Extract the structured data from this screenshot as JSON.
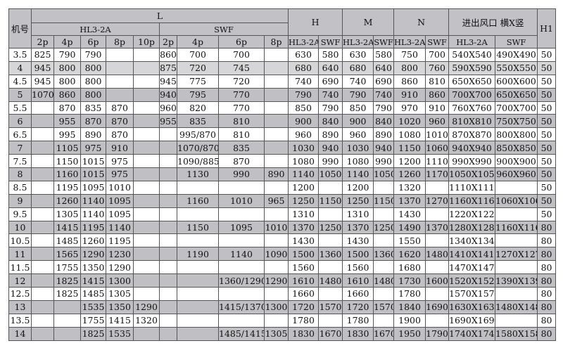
{
  "header": {
    "model": "机号",
    "L": "L",
    "H": "H",
    "M": "M",
    "N": "N",
    "outlet": "进出风口 横X竖",
    "H1": "H1",
    "HL": "HL3-2A",
    "SWF": "SWF",
    "poles_hl": [
      "2p",
      "4p",
      "6p",
      "8p",
      "10p"
    ],
    "poles_swf": [
      "2p",
      "4p",
      "6p",
      "8p"
    ]
  },
  "rows": [
    [
      "3.5",
      "825",
      "790",
      "790",
      "",
      "",
      "860",
      "700",
      "700",
      "",
      "630",
      "580",
      "630",
      "580",
      "750",
      "700",
      "540X540",
      "490X490",
      "50"
    ],
    [
      "4",
      "945",
      "800",
      "800",
      "",
      "",
      "875",
      "720",
      "745",
      "",
      "680",
      "640",
      "680",
      "640",
      "800",
      "760",
      "590X590",
      "550X550",
      "50"
    ],
    [
      "4.5",
      "945",
      "800",
      "800",
      "",
      "",
      "945",
      "775",
      "720",
      "",
      "740",
      "690",
      "740",
      "690",
      "860",
      "810",
      "650X650",
      "600X600",
      "50"
    ],
    [
      "5",
      "1070",
      "860",
      "800",
      "",
      "",
      "940",
      "795",
      "770",
      "",
      "790",
      "740",
      "790",
      "740",
      "910",
      "860",
      "700X700",
      "650X650",
      "50"
    ],
    [
      "5.5",
      "",
      "870",
      "835",
      "870",
      "",
      "960",
      "820",
      "770",
      "",
      "850",
      "790",
      "850",
      "790",
      "970",
      "910",
      "760X760",
      "700X700",
      "50"
    ],
    [
      "6",
      "",
      "955",
      "870",
      "870",
      "",
      "955",
      "835",
      "810",
      "",
      "900",
      "840",
      "900",
      "840",
      "1020",
      "960",
      "810X810",
      "750X750",
      "50"
    ],
    [
      "6.5",
      "",
      "995",
      "890",
      "870",
      "",
      "",
      "995/870",
      "810",
      "",
      "960",
      "890",
      "960",
      "890",
      "1080",
      "1010",
      "870X870",
      "800X800",
      "50"
    ],
    [
      "7",
      "",
      "1105",
      "975",
      "910",
      "",
      "",
      "1070/870",
      "835",
      "",
      "1030",
      "940",
      "1030",
      "940",
      "1150",
      "1060",
      "940X940",
      "850X850",
      "50"
    ],
    [
      "7.5",
      "",
      "1150",
      "1015",
      "975",
      "",
      "",
      "1090/885",
      "870",
      "",
      "1080",
      "990",
      "1080",
      "990",
      "1200",
      "1110",
      "990X990",
      "900X900",
      "50"
    ],
    [
      "8",
      "",
      "1160",
      "1015",
      "975",
      "",
      "",
      "1130",
      "990",
      "890",
      "1140",
      "1050",
      "1140",
      "1050",
      "1260",
      "1170",
      "1050X1050",
      "960X960",
      "50"
    ],
    [
      "8.5",
      "",
      "1195",
      "1095",
      "1010",
      "",
      "",
      "",
      "",
      "",
      "1200",
      "",
      "1200",
      "",
      "1320",
      "",
      "1110X1110",
      "",
      "50"
    ],
    [
      "9",
      "",
      "1260",
      "1140",
      "1095",
      "",
      "",
      "1160",
      "1010",
      "965",
      "1250",
      "1150",
      "1250",
      "1150",
      "1370",
      "1270",
      "1160X1160",
      "1060X1060",
      "50"
    ],
    [
      "9.5",
      "",
      "1305",
      "1140",
      "1095",
      "",
      "",
      "",
      "",
      "",
      "1310",
      "",
      "1310",
      "",
      "1430",
      "",
      "1220X1220",
      "",
      "50"
    ],
    [
      "10",
      "",
      "1415",
      "1195",
      "1140",
      "",
      "",
      "1150",
      "1095",
      "1010",
      "1370",
      "1250",
      "1370",
      "1250",
      "1490",
      "1370",
      "1280X1280",
      "1160X1160",
      "80"
    ],
    [
      "10.5",
      "",
      "1485",
      "1260",
      "1195",
      "",
      "",
      "",
      "",
      "",
      "1430",
      "",
      "1430",
      "",
      "1550",
      "",
      "1340X1340",
      "",
      "80"
    ],
    [
      "11",
      "",
      "1565",
      "1290",
      "1230",
      "",
      "",
      "1190",
      "1140",
      "1090",
      "1500",
      "1360",
      "1500",
      "1360",
      "1620",
      "1480",
      "1410X1410",
      "1270X1270",
      "80"
    ],
    [
      "11.5",
      "",
      "1755",
      "1350",
      "1290",
      "",
      "",
      "",
      "",
      "",
      "1560",
      "",
      "1560",
      "",
      "1680",
      "",
      "1470X1470",
      "",
      "80"
    ],
    [
      "12",
      "",
      "1825",
      "1415",
      "1300",
      "",
      "",
      "",
      "1360/1290",
      "1290",
      "1610",
      "1480",
      "1610",
      "1480",
      "1730",
      "1600",
      "1520X1520",
      "1390X1390",
      "80"
    ],
    [
      "12.5",
      "",
      "1825",
      "1485",
      "1305",
      "",
      "",
      "",
      "",
      "",
      "1660",
      "",
      "1660",
      "",
      "1780",
      "",
      "1570X1570",
      "",
      "80"
    ],
    [
      "13",
      "",
      "",
      "1535",
      "1350",
      "1290",
      "",
      "",
      "1415/1370",
      "1300",
      "1720",
      "1570",
      "1720",
      "1570",
      "1840",
      "1690",
      "1630X1630",
      "1480X1480",
      "80"
    ],
    [
      "13.5",
      "",
      "",
      "1755",
      "1415",
      "1320",
      "",
      "",
      "",
      "",
      "1780",
      "",
      "1780",
      "",
      "1900",
      "",
      "1690X1690",
      "",
      "80"
    ],
    [
      "14",
      "",
      "",
      "1825",
      "1535",
      "",
      "",
      "",
      "1485/1415",
      "1305",
      "1830",
      "1670",
      "1830",
      "1670",
      "1950",
      "1790",
      "1740X1740",
      "1580X1580",
      "80"
    ]
  ]
}
